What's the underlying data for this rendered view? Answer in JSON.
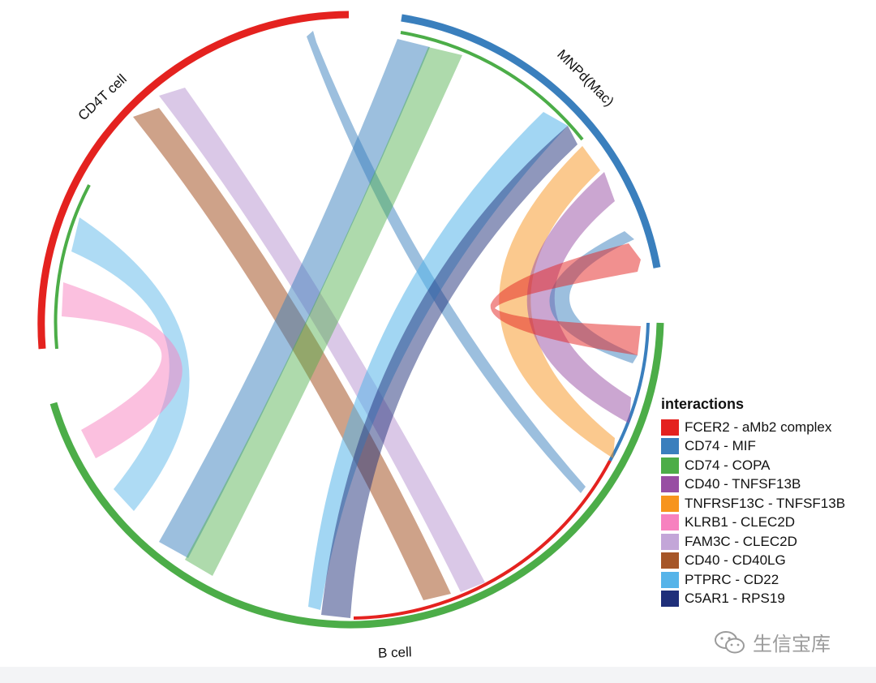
{
  "diagram": {
    "type": "chord",
    "sectors": [
      {
        "name": "CD4T cell",
        "color": "#e4221f"
      },
      {
        "name": "MNPd(Mac)",
        "color": "#3a7fbd"
      },
      {
        "name": "B cell",
        "color": "#4cad48"
      }
    ],
    "legend": {
      "title": "interactions",
      "items": [
        {
          "label": "FCER2 - aMb2 complex",
          "color": "#e4221f"
        },
        {
          "label": "CD74 - MIF",
          "color": "#3a7fbd"
        },
        {
          "label": "CD74 - COPA",
          "color": "#4cad48"
        },
        {
          "label": "CD40 - TNFSF13B",
          "color": "#984ea3"
        },
        {
          "label": "TNFRSF13C - TNFSF13B",
          "color": "#f7941d"
        },
        {
          "label": "KLRB1 - CLEC2D",
          "color": "#f781bf"
        },
        {
          "label": "FAM3C - CLEC2D",
          "color": "#c3a6d8"
        },
        {
          "label": "CD40 - CD40LG",
          "color": "#a65628"
        },
        {
          "label": "PTPRC - CD22",
          "color": "#56b4e9"
        },
        {
          "label": "C5AR1 - RPS19",
          "color": "#1f2f7a"
        }
      ]
    },
    "links": [
      {
        "interaction": "CD74 - MIF",
        "from": "CD4T cell",
        "to": "B cell"
      },
      {
        "interaction": "FAM3C - CLEC2D",
        "from": "CD4T cell",
        "to": "B cell"
      },
      {
        "interaction": "CD40 - CD40LG",
        "from": "CD4T cell",
        "to": "B cell"
      },
      {
        "interaction": "PTPRC - CD22",
        "from": "CD4T cell",
        "to": "B cell"
      },
      {
        "interaction": "KLRB1 - CLEC2D",
        "from": "CD4T cell",
        "to": "B cell"
      },
      {
        "interaction": "CD74 - MIF",
        "from": "MNPd(Mac)",
        "to": "B cell"
      },
      {
        "interaction": "CD74 - COPA",
        "from": "MNPd(Mac)",
        "to": "B cell"
      },
      {
        "interaction": "PTPRC - CD22",
        "from": "MNPd(Mac)",
        "to": "B cell"
      },
      {
        "interaction": "C5AR1 - RPS19",
        "from": "MNPd(Mac)",
        "to": "B cell"
      },
      {
        "interaction": "TNFRSF13C - TNFSF13B",
        "from": "MNPd(Mac)",
        "to": "B cell"
      },
      {
        "interaction": "CD40 - TNFSF13B",
        "from": "MNPd(Mac)",
        "to": "B cell"
      },
      {
        "interaction": "CD74 - MIF",
        "from": "MNPd(Mac)",
        "to": "B cell"
      },
      {
        "interaction": "FCER2 - aMb2 complex",
        "from": "B cell",
        "to": "MNPd(Mac)"
      }
    ]
  },
  "watermark": {
    "text": "生信宝库",
    "icon": "wechat-icon"
  }
}
